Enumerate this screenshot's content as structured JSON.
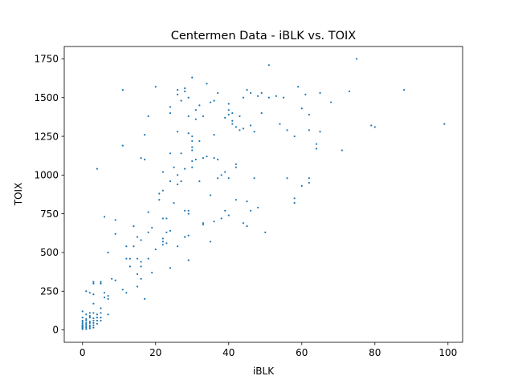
{
  "chart_data": {
    "type": "scatter",
    "title": "Centermen Data - iBLK vs. TOIX",
    "xlabel": "iBLK",
    "ylabel": "TOIX",
    "xlim": [
      -5,
      104
    ],
    "ylim": [
      -80,
      1830
    ],
    "x_ticks": [
      0,
      20,
      40,
      60,
      80,
      100
    ],
    "y_ticks": [
      0,
      250,
      500,
      750,
      1000,
      1250,
      1500,
      1750
    ],
    "grid": false,
    "legend": "none",
    "marker_color": "#1f77b4",
    "points": [
      [
        0,
        5
      ],
      [
        0,
        10
      ],
      [
        0,
        15
      ],
      [
        0,
        20
      ],
      [
        0,
        25
      ],
      [
        0,
        30
      ],
      [
        0,
        40
      ],
      [
        0,
        50
      ],
      [
        0,
        60
      ],
      [
        0,
        80
      ],
      [
        0,
        120
      ],
      [
        1,
        5
      ],
      [
        1,
        15
      ],
      [
        1,
        25
      ],
      [
        1,
        35
      ],
      [
        1,
        45
      ],
      [
        1,
        60
      ],
      [
        1,
        70
      ],
      [
        1,
        100
      ],
      [
        1,
        250
      ],
      [
        2,
        10
      ],
      [
        2,
        20
      ],
      [
        2,
        30
      ],
      [
        2,
        45
      ],
      [
        2,
        55
      ],
      [
        2,
        80
      ],
      [
        2,
        90
      ],
      [
        2,
        110
      ],
      [
        2,
        240
      ],
      [
        3,
        15
      ],
      [
        3,
        30
      ],
      [
        3,
        45
      ],
      [
        3,
        60
      ],
      [
        3,
        75
      ],
      [
        3,
        110
      ],
      [
        3,
        170
      ],
      [
        3,
        230
      ],
      [
        3,
        300
      ],
      [
        3,
        310
      ],
      [
        4,
        40
      ],
      [
        4,
        60
      ],
      [
        4,
        80
      ],
      [
        4,
        100
      ],
      [
        4,
        1040
      ],
      [
        5,
        60
      ],
      [
        5,
        80
      ],
      [
        5,
        110
      ],
      [
        5,
        140
      ],
      [
        5,
        300
      ],
      [
        5,
        310
      ],
      [
        6,
        210
      ],
      [
        6,
        240
      ],
      [
        6,
        730
      ],
      [
        7,
        100
      ],
      [
        7,
        200
      ],
      [
        7,
        220
      ],
      [
        7,
        500
      ],
      [
        8,
        330
      ],
      [
        9,
        320
      ],
      [
        9,
        620
      ],
      [
        9,
        710
      ],
      [
        11,
        260
      ],
      [
        11,
        1190
      ],
      [
        11,
        1550
      ],
      [
        12,
        240
      ],
      [
        12,
        460
      ],
      [
        12,
        540
      ],
      [
        13,
        410
      ],
      [
        13,
        460
      ],
      [
        14,
        540
      ],
      [
        14,
        670
      ],
      [
        15,
        280
      ],
      [
        15,
        360
      ],
      [
        15,
        460
      ],
      [
        15,
        600
      ],
      [
        16,
        330
      ],
      [
        16,
        410
      ],
      [
        16,
        440
      ],
      [
        16,
        580
      ],
      [
        16,
        1110
      ],
      [
        17,
        200
      ],
      [
        17,
        1260
      ],
      [
        17,
        1100
      ],
      [
        18,
        460
      ],
      [
        18,
        630
      ],
      [
        18,
        760
      ],
      [
        18,
        1380
      ],
      [
        19,
        370
      ],
      [
        19,
        660
      ],
      [
        20,
        520
      ],
      [
        20,
        1570
      ],
      [
        21,
        880
      ],
      [
        21,
        840
      ],
      [
        22,
        550
      ],
      [
        22,
        570
      ],
      [
        22,
        590
      ],
      [
        22,
        720
      ],
      [
        22,
        900
      ],
      [
        22,
        1020
      ],
      [
        23,
        560
      ],
      [
        23,
        630
      ],
      [
        23,
        720
      ],
      [
        24,
        400
      ],
      [
        24,
        640
      ],
      [
        24,
        960
      ],
      [
        24,
        1140
      ],
      [
        24,
        1400
      ],
      [
        24,
        1440
      ],
      [
        25,
        820
      ],
      [
        25,
        1050
      ],
      [
        26,
        540
      ],
      [
        26,
        940
      ],
      [
        26,
        1000
      ],
      [
        26,
        1280
      ],
      [
        26,
        1520
      ],
      [
        26,
        1550
      ],
      [
        27,
        960
      ],
      [
        27,
        1140
      ],
      [
        27,
        1480
      ],
      [
        28,
        600
      ],
      [
        28,
        770
      ],
      [
        28,
        1040
      ],
      [
        28,
        1540
      ],
      [
        28,
        1560
      ],
      [
        29,
        450
      ],
      [
        29,
        610
      ],
      [
        29,
        750
      ],
      [
        29,
        770
      ],
      [
        29,
        1270
      ],
      [
        29,
        1380
      ],
      [
        29,
        1500
      ],
      [
        30,
        1050
      ],
      [
        30,
        1090
      ],
      [
        30,
        1160
      ],
      [
        30,
        1180
      ],
      [
        30,
        1220
      ],
      [
        30,
        1250
      ],
      [
        30,
        1630
      ],
      [
        31,
        1100
      ],
      [
        31,
        1360
      ],
      [
        31,
        1420
      ],
      [
        32,
        960
      ],
      [
        32,
        1220
      ],
      [
        32,
        1450
      ],
      [
        33,
        680
      ],
      [
        33,
        690
      ],
      [
        33,
        1110
      ],
      [
        33,
        1380
      ],
      [
        34,
        1120
      ],
      [
        34,
        1590
      ],
      [
        35,
        570
      ],
      [
        35,
        870
      ],
      [
        35,
        1470
      ],
      [
        36,
        700
      ],
      [
        36,
        1110
      ],
      [
        36,
        1260
      ],
      [
        36,
        1480
      ],
      [
        37,
        980
      ],
      [
        37,
        1100
      ],
      [
        37,
        1530
      ],
      [
        38,
        720
      ],
      [
        38,
        1000
      ],
      [
        39,
        770
      ],
      [
        39,
        1020
      ],
      [
        39,
        1370
      ],
      [
        40,
        740
      ],
      [
        40,
        980
      ],
      [
        40,
        1390
      ],
      [
        40,
        1420
      ],
      [
        40,
        1460
      ],
      [
        41,
        1330
      ],
      [
        41,
        1350
      ],
      [
        41,
        1400
      ],
      [
        42,
        840
      ],
      [
        42,
        1050
      ],
      [
        42,
        1070
      ],
      [
        42,
        1310
      ],
      [
        43,
        1290
      ],
      [
        43,
        1380
      ],
      [
        44,
        690
      ],
      [
        44,
        1300
      ],
      [
        44,
        1500
      ],
      [
        45,
        670
      ],
      [
        45,
        830
      ],
      [
        45,
        1550
      ],
      [
        46,
        770
      ],
      [
        46,
        1320
      ],
      [
        46,
        1530
      ],
      [
        47,
        980
      ],
      [
        47,
        1280
      ],
      [
        48,
        790
      ],
      [
        48,
        1510
      ],
      [
        49,
        1400
      ],
      [
        49,
        1530
      ],
      [
        50,
        630
      ],
      [
        51,
        1500
      ],
      [
        51,
        1710
      ],
      [
        53,
        1510
      ],
      [
        54,
        1330
      ],
      [
        55,
        1500
      ],
      [
        56,
        980
      ],
      [
        56,
        1290
      ],
      [
        58,
        820
      ],
      [
        58,
        850
      ],
      [
        58,
        1250
      ],
      [
        59,
        1570
      ],
      [
        60,
        930
      ],
      [
        60,
        1430
      ],
      [
        61,
        1520
      ],
      [
        62,
        950
      ],
      [
        62,
        980
      ],
      [
        62,
        1290
      ],
      [
        62,
        1390
      ],
      [
        64,
        1170
      ],
      [
        64,
        1200
      ],
      [
        65,
        1280
      ],
      [
        65,
        1530
      ],
      [
        68,
        1470
      ],
      [
        71,
        1160
      ],
      [
        73,
        1540
      ],
      [
        75,
        1750
      ],
      [
        79,
        1320
      ],
      [
        80,
        1310
      ],
      [
        88,
        1550
      ],
      [
        99,
        1330
      ]
    ]
  }
}
